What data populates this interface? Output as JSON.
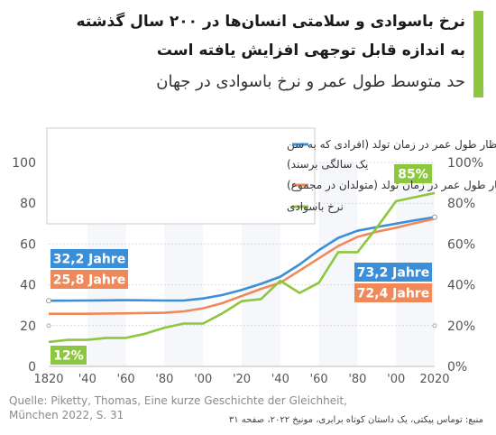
{
  "header": {
    "title_line1": "نرخ  باسوادی و سلامتی انسان‌ها در ۲۰۰ سال گذشته",
    "title_line2": "به اندازه قابل توجهی افزایش یافته است",
    "subtitle": "حد متوسط طول عمر و نرخ باسوادی در جهان",
    "accent_color": "#8dc63f"
  },
  "source": {
    "german": "Quelle: Piketty, Thomas, Eine kurze Geschichte der Gleichheit,\nMünchen 2022, S. 31",
    "persian": "منبع: توماس پیکتی، یک داستان کوتاه برابری، مونیخ ۲۰۲۲، صفحه ۳۱"
  },
  "chart_data": {
    "type": "line",
    "x_ticks": [
      1820,
      1840,
      1860,
      1880,
      1900,
      1920,
      1940,
      1960,
      1980,
      2000,
      2020
    ],
    "x_tick_labels": [
      "1820",
      "'40",
      "'60",
      "'80",
      "'00",
      "'20",
      "'40",
      "'60",
      "'80",
      "'00",
      "2020"
    ],
    "xlim": [
      1820,
      2020
    ],
    "y_left": {
      "ylim": [
        0,
        100
      ],
      "ticks": [
        0,
        20,
        40,
        60,
        80,
        100
      ],
      "tick_labels": [
        "0",
        "20",
        "40",
        "60",
        "80",
        "100"
      ]
    },
    "y_right": {
      "ylim": [
        0,
        100
      ],
      "ticks": [
        0,
        20,
        40,
        60,
        80,
        100
      ],
      "tick_labels": [
        "0%",
        "20%",
        "40%",
        "60%",
        "80%",
        "100%"
      ]
    },
    "grid": true,
    "legend_position": "top-center",
    "series": [
      {
        "name": "انتظار طول عمر در زمان تولد (افرادی که به سن یک سالگی برسند)",
        "name_line1": "انتظار طول عمر در زمان تولد (افرادی که به سن",
        "name_line2": "یک سالگی برسند)",
        "color": "#3b8fd9",
        "axis": "left",
        "x": [
          1820,
          1840,
          1860,
          1880,
          1890,
          1900,
          1910,
          1920,
          1930,
          1940,
          1950,
          1960,
          1970,
          1980,
          1990,
          2000,
          2010,
          2020
        ],
        "values": [
          32.2,
          32.3,
          32.5,
          32.3,
          32.3,
          33.3,
          35.0,
          37.5,
          40.5,
          44.0,
          50.0,
          57.0,
          63.0,
          66.5,
          68.3,
          70.0,
          71.7,
          73.2
        ],
        "start_label": "32,2 Jahre",
        "end_label": "73,2 Jahre"
      },
      {
        "name": "انتظار طول عمر در زمان تولد (متولدان در مجموع)",
        "color": "#f0895a",
        "axis": "left",
        "x": [
          1820,
          1840,
          1860,
          1880,
          1890,
          1900,
          1910,
          1920,
          1930,
          1940,
          1950,
          1960,
          1970,
          1980,
          1990,
          2000,
          2010,
          2020
        ],
        "values": [
          25.8,
          25.8,
          26.0,
          26.3,
          27.0,
          28.5,
          31.0,
          34.5,
          38.0,
          41.0,
          47.0,
          53.0,
          59.0,
          63.5,
          66.0,
          68.0,
          70.3,
          72.4
        ],
        "start_label": "25,8 Jahre",
        "end_label": "72,4 Jahre"
      },
      {
        "name": "نرخ باسوادی",
        "color": "#8dc63f",
        "axis": "right",
        "x": [
          1820,
          1830,
          1840,
          1850,
          1860,
          1870,
          1880,
          1890,
          1900,
          1910,
          1920,
          1930,
          1940,
          1950,
          1960,
          1970,
          1980,
          1990,
          2000,
          2010,
          2020
        ],
        "values": [
          12,
          13,
          13,
          14,
          14,
          16,
          19,
          21,
          21,
          26,
          32,
          33,
          42,
          36,
          41,
          56,
          56,
          68,
          81,
          83,
          85
        ],
        "start_label": "12%",
        "end_label": "85%"
      }
    ]
  }
}
